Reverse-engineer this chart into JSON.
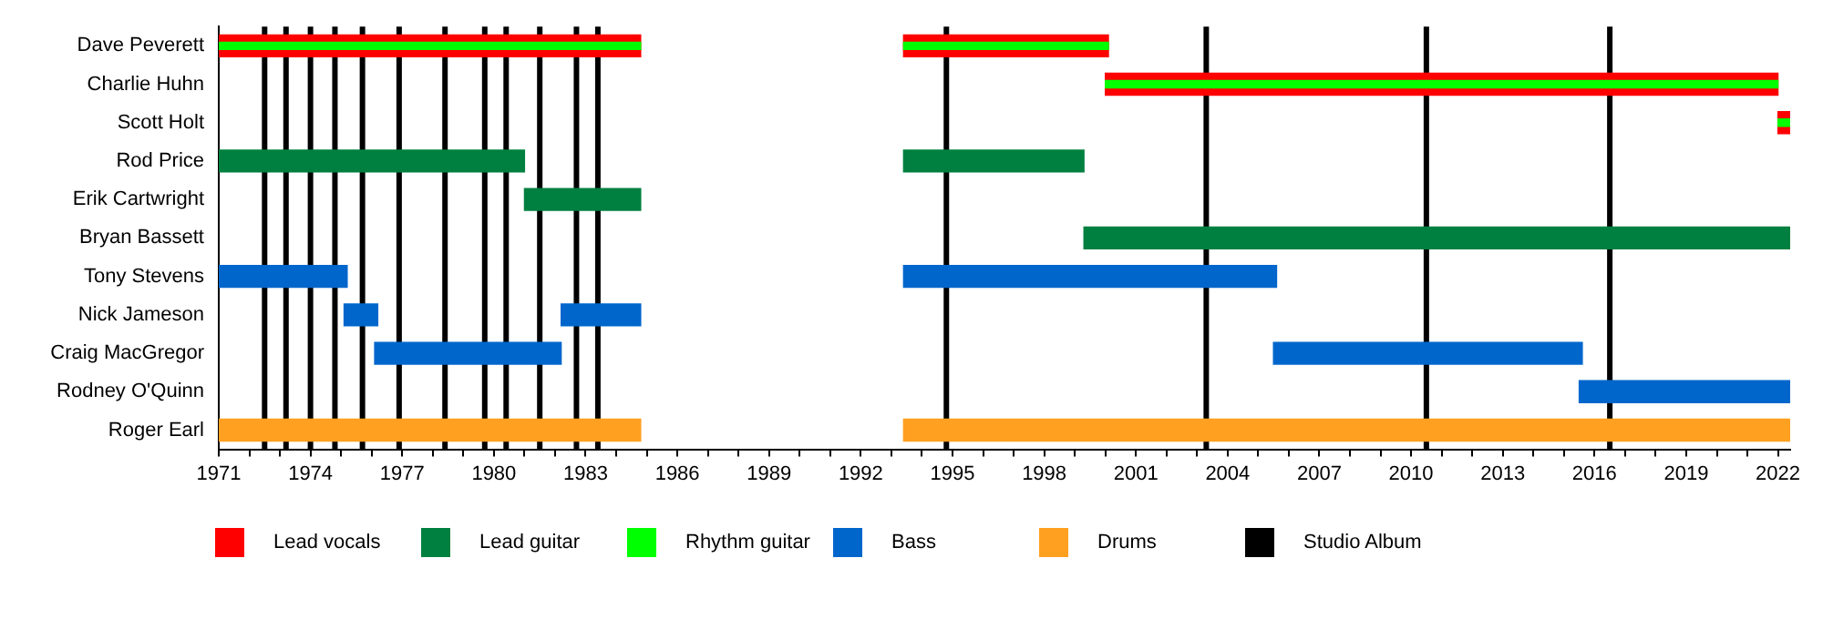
{
  "chart_data": {
    "type": "bar",
    "orientation": "horizontal",
    "categories": [
      "Dave Peverett",
      "Charlie Huhn",
      "Scott Holt",
      "Rod Price",
      "Erik Cartwright",
      "Bryan Bassett",
      "Tony Stevens",
      "Nick Jameson",
      "Craig MacGregor",
      "Rodney O'Quinn",
      "Roger Earl"
    ],
    "series": [
      {
        "name": "Lead vocals",
        "color": "#ff0000",
        "values": [
          13.8,
          22.0,
          0.4,
          null,
          null,
          null,
          null,
          null,
          null,
          null,
          null
        ],
        "base": [
          1971,
          2000.0,
          2022.0,
          null,
          null,
          null,
          null,
          null,
          null,
          null,
          null
        ]
      },
      {
        "color": "#ff0000",
        "values": [
          6.7,
          null,
          null,
          null,
          null,
          null,
          null,
          null,
          null,
          null,
          null
        ],
        "base": [
          1993.4,
          null,
          null,
          null,
          null,
          null,
          null,
          null,
          null,
          null,
          null
        ]
      },
      {
        "name": "Lead guitar",
        "color": "#008040",
        "values": [
          null,
          null,
          null,
          10.0,
          3.8,
          23.1,
          null,
          null,
          null,
          null,
          null
        ],
        "base": [
          null,
          null,
          null,
          1971,
          1981.0,
          1999.3,
          null,
          null,
          null,
          null,
          null
        ]
      },
      {
        "color": "#008040",
        "values": [
          null,
          null,
          null,
          5.9,
          null,
          null,
          null,
          null,
          null,
          null,
          null
        ],
        "base": [
          null,
          null,
          null,
          1993.4,
          null,
          null,
          null,
          null,
          null,
          null,
          null
        ]
      },
      {
        "name": "Rhythm guitar",
        "color": "#00ff00",
        "values": [
          13.8,
          22.0,
          0.4,
          null,
          null,
          null,
          null,
          null,
          null,
          null,
          null
        ],
        "base": [
          1971,
          2000.0,
          2022.0,
          null,
          null,
          null,
          null,
          null,
          null,
          null,
          null
        ]
      },
      {
        "color": "#00ff00",
        "values": [
          6.7,
          null,
          null,
          null,
          null,
          null,
          null,
          null,
          null,
          null,
          null
        ],
        "base": [
          1993.4,
          null,
          null,
          null,
          null,
          null,
          null,
          null,
          null,
          null,
          null
        ]
      },
      {
        "name": "Bass",
        "color": "#0066cc",
        "values": [
          null,
          null,
          null,
          null,
          null,
          null,
          4.2,
          1.1,
          6.1,
          6.9,
          null
        ],
        "base": [
          null,
          null,
          null,
          null,
          null,
          null,
          1971,
          1975.1,
          1976.1,
          2015.5,
          null
        ]
      },
      {
        "color": "#0066cc",
        "values": [
          null,
          null,
          null,
          null,
          null,
          null,
          12.2,
          2.6,
          10.1,
          null,
          null
        ],
        "base": [
          null,
          null,
          null,
          null,
          null,
          null,
          1993.4,
          1982.2,
          2005.5,
          null,
          null
        ]
      },
      {
        "name": "Drums",
        "color": "#ffa020",
        "values": [
          null,
          null,
          null,
          null,
          null,
          null,
          null,
          null,
          null,
          null,
          13.8
        ],
        "base": [
          null,
          null,
          null,
          null,
          null,
          null,
          null,
          null,
          null,
          null,
          1971
        ]
      },
      {
        "color": "#ffa020",
        "values": [
          null,
          null,
          null,
          null,
          null,
          null,
          null,
          null,
          null,
          null,
          29.0
        ],
        "base": [
          null,
          null,
          null,
          null,
          null,
          null,
          null,
          null,
          null,
          null,
          1993.4
        ]
      }
    ],
    "ref_lines": [
      {
        "axis": "x",
        "value": 1972.5,
        "label": "Studio Album",
        "color": "#000000"
      },
      {
        "axis": "x",
        "value": 1973.2,
        "color": "#000000"
      },
      {
        "axis": "x",
        "value": 1974.0,
        "color": "#000000"
      },
      {
        "axis": "x",
        "value": 1974.8,
        "color": "#000000"
      },
      {
        "axis": "x",
        "value": 1975.7,
        "color": "#000000"
      },
      {
        "axis": "x",
        "value": 1976.9,
        "color": "#000000"
      },
      {
        "axis": "x",
        "value": 1978.4,
        "color": "#000000"
      },
      {
        "axis": "x",
        "value": 1979.7,
        "color": "#000000"
      },
      {
        "axis": "x",
        "value": 1980.4,
        "color": "#000000"
      },
      {
        "axis": "x",
        "value": 1981.5,
        "color": "#000000"
      },
      {
        "axis": "x",
        "value": 1982.7,
        "color": "#000000"
      },
      {
        "axis": "x",
        "value": 1983.4,
        "color": "#000000"
      },
      {
        "axis": "x",
        "value": 1994.8,
        "color": "#000000"
      },
      {
        "axis": "x",
        "value": 2003.3,
        "color": "#000000"
      },
      {
        "axis": "x",
        "value": 2010.5,
        "color": "#000000"
      },
      {
        "axis": "x",
        "value": 2016.5,
        "color": "#000000"
      }
    ],
    "xlim": [
      1971,
      2022.4
    ],
    "xticks": [
      1971,
      {
        "value": 1972,
        "label": null
      },
      {
        "value": 1973,
        "label": null
      },
      1974,
      {
        "value": 1975,
        "label": null
      },
      {
        "value": 1976,
        "label": null
      },
      1977,
      {
        "value": 1978,
        "label": null
      },
      {
        "value": 1979,
        "label": null
      },
      1980,
      {
        "value": 1981,
        "label": null
      },
      {
        "value": 1982,
        "label": null
      },
      1983,
      {
        "value": 1984,
        "label": null
      },
      {
        "value": 1985,
        "label": null
      },
      1986,
      {
        "value": 1987,
        "label": null
      },
      {
        "value": 1988,
        "label": null
      },
      1989,
      {
        "value": 1990,
        "label": null
      },
      {
        "value": 1991,
        "label": null
      },
      1992,
      {
        "value": 1993,
        "label": null
      },
      {
        "value": 1994,
        "label": null
      },
      1995,
      {
        "value": 1996,
        "label": null
      },
      {
        "value": 1997,
        "label": null
      },
      1998,
      {
        "value": 1999,
        "label": null
      },
      {
        "value": 2000,
        "label": null
      },
      2001,
      {
        "value": 2002,
        "label": null
      },
      {
        "value": 2003,
        "label": null
      },
      2004,
      {
        "value": 2005,
        "label": null
      },
      {
        "value": 2006,
        "label": null
      },
      2007,
      {
        "value": 2008,
        "label": null
      },
      {
        "value": 2009,
        "label": null
      },
      2010,
      {
        "value": 2011,
        "label": null
      },
      {
        "value": 2012,
        "label": null
      },
      2013,
      {
        "value": 2014,
        "label": null
      },
      {
        "value": 2015,
        "label": null
      },
      2016,
      {
        "value": 2017,
        "label": null
      },
      {
        "value": 2018,
        "label": null
      },
      2019,
      {
        "value": 2020,
        "label": null
      },
      {
        "value": 2021,
        "label": null
      },
      2022
    ],
    "grid": false,
    "legend": "bottom left"
  }
}
